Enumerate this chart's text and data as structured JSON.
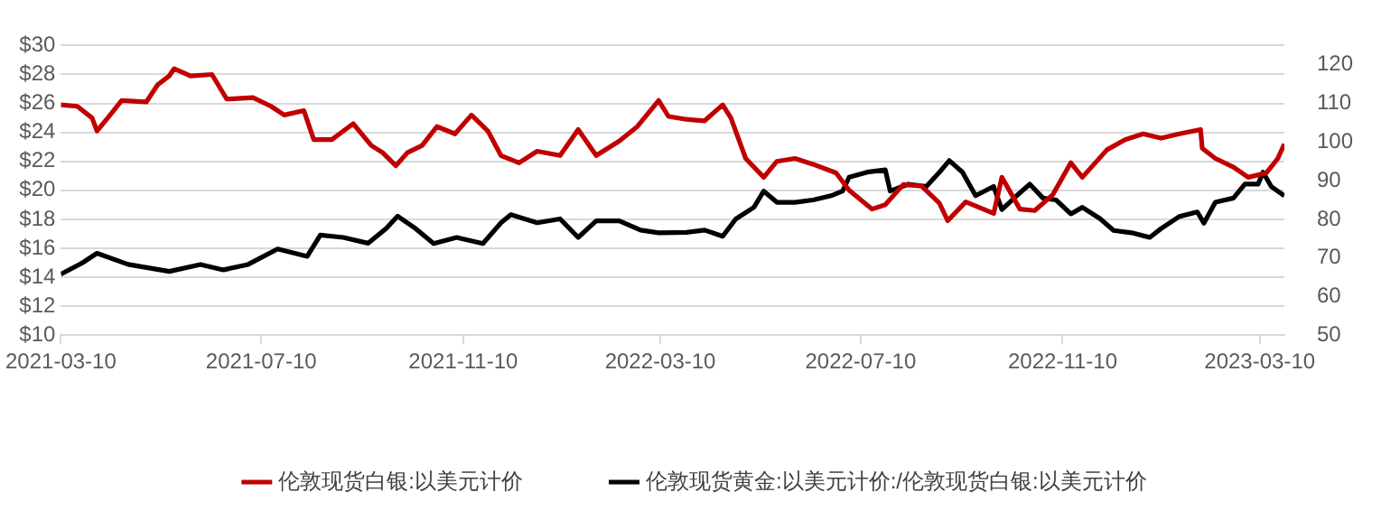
{
  "chart_data": {
    "type": "line",
    "xlim": [
      "2021-03-10",
      "2023-03-25"
    ],
    "xticks": [
      "2021-03-10",
      "2021-07-10",
      "2021-11-10",
      "2022-03-10",
      "2022-07-10",
      "2022-11-10",
      "2023-03-10"
    ],
    "ylim": [
      10,
      30
    ],
    "yticks": [
      {
        "value": 10,
        "label": "$10"
      },
      {
        "value": 12,
        "label": "$12"
      },
      {
        "value": 14,
        "label": "$14"
      },
      {
        "value": 16,
        "label": "$16"
      },
      {
        "value": 18,
        "label": "$18"
      },
      {
        "value": 20,
        "label": "$20"
      },
      {
        "value": 22,
        "label": "$22"
      },
      {
        "value": 24,
        "label": "$24"
      },
      {
        "value": 26,
        "label": "$26"
      },
      {
        "value": 28,
        "label": "$28"
      },
      {
        "value": 30,
        "label": "$30"
      }
    ],
    "y2lim": [
      50,
      125
    ],
    "y2ticks": [
      50,
      60,
      70,
      80,
      90,
      100,
      110,
      120
    ],
    "grid": "y",
    "legend": "bottom",
    "marker": "none",
    "line_style": "solid",
    "series": [
      {
        "name": "伦敦现货白银:以美元计价",
        "color": "#c00000",
        "x": [
          "2021-03-10",
          "2021-03-20",
          "2021-03-29",
          "2021-04-01",
          "2021-04-09",
          "2021-04-16",
          "2021-05-01",
          "2021-05-08",
          "2021-05-15",
          "2021-05-18",
          "2021-05-28",
          "2021-06-10",
          "2021-06-19",
          "2021-07-05",
          "2021-07-16",
          "2021-07-24",
          "2021-08-05",
          "2021-08-11",
          "2021-08-22",
          "2021-09-04",
          "2021-09-15",
          "2021-09-22",
          "2021-09-30",
          "2021-10-07",
          "2021-10-16",
          "2021-10-25",
          "2021-11-05",
          "2021-11-15",
          "2021-11-25",
          "2021-12-03",
          "2021-12-14",
          "2021-12-25",
          "2022-01-08",
          "2022-01-19",
          "2022-01-30",
          "2022-02-13",
          "2022-02-24",
          "2022-03-09",
          "2022-03-15",
          "2022-03-26",
          "2022-04-06",
          "2022-04-17",
          "2022-04-22",
          "2022-05-01",
          "2022-05-12",
          "2022-05-20",
          "2022-05-31",
          "2022-06-11",
          "2022-06-25",
          "2022-07-03",
          "2022-07-17",
          "2022-07-25",
          "2022-08-05",
          "2022-08-16",
          "2022-08-27",
          "2022-09-01",
          "2022-09-12",
          "2022-09-29",
          "2022-10-04",
          "2022-10-15",
          "2022-10-24",
          "2022-11-04",
          "2022-11-15",
          "2022-11-22",
          "2022-12-07",
          "2022-12-18",
          "2022-12-29",
          "2023-01-09",
          "2023-01-20",
          "2023-02-02",
          "2023-02-03",
          "2023-02-11",
          "2023-02-22",
          "2023-03-03",
          "2023-03-14",
          "2023-03-21",
          "2023-03-25"
        ],
        "values": [
          25.9,
          25.8,
          25.0,
          24.1,
          25.2,
          26.2,
          26.1,
          27.3,
          27.9,
          28.4,
          27.9,
          28.0,
          26.3,
          26.4,
          25.8,
          25.2,
          25.5,
          23.5,
          23.5,
          24.6,
          23.1,
          22.6,
          21.7,
          22.6,
          23.1,
          24.4,
          23.9,
          25.2,
          24.1,
          22.4,
          21.9,
          22.7,
          22.4,
          24.2,
          22.4,
          23.4,
          24.4,
          26.2,
          25.1,
          24.9,
          24.8,
          25.9,
          25.0,
          22.2,
          20.9,
          22.0,
          22.2,
          21.8,
          21.2,
          20.0,
          18.7,
          19.0,
          20.4,
          20.3,
          19.1,
          17.9,
          19.2,
          18.4,
          20.9,
          18.7,
          18.6,
          19.7,
          21.9,
          20.9,
          22.8,
          23.5,
          23.9,
          23.6,
          23.9,
          24.2,
          22.9,
          22.2,
          21.6,
          20.9,
          21.2,
          22.2,
          23.2
        ]
      },
      {
        "name": "伦敦现货黄金:以美元计价:/伦敦现货白银:以美元计价",
        "color": "#000000",
        "axis": "y2",
        "x": [
          "2021-03-10",
          "2021-03-23",
          "2021-04-01",
          "2021-04-20",
          "2021-05-15",
          "2021-06-03",
          "2021-06-17",
          "2021-07-02",
          "2021-07-20",
          "2021-08-07",
          "2021-08-15",
          "2021-08-29",
          "2021-09-13",
          "2021-09-24",
          "2021-10-01",
          "2021-10-12",
          "2021-10-23",
          "2021-11-06",
          "2021-11-22",
          "2021-12-03",
          "2021-12-09",
          "2021-12-25",
          "2022-01-08",
          "2022-01-19",
          "2022-01-30",
          "2022-02-13",
          "2022-02-26",
          "2022-03-09",
          "2022-03-26",
          "2022-04-06",
          "2022-04-17",
          "2022-04-25",
          "2022-05-06",
          "2022-05-12",
          "2022-05-20",
          "2022-05-31",
          "2022-06-11",
          "2022-06-22",
          "2022-06-29",
          "2022-07-03",
          "2022-07-14",
          "2022-07-25",
          "2022-07-28",
          "2022-08-08",
          "2022-08-19",
          "2022-08-27",
          "2022-09-02",
          "2022-09-10",
          "2022-09-18",
          "2022-09-29",
          "2022-10-04",
          "2022-10-13",
          "2022-10-21",
          "2022-10-29",
          "2022-11-06",
          "2022-11-15",
          "2022-11-22",
          "2022-12-03",
          "2022-12-11",
          "2022-12-22",
          "2023-01-02",
          "2023-01-09",
          "2023-01-20",
          "2023-01-31",
          "2023-02-04",
          "2023-02-11",
          "2023-02-22",
          "2023-03-01",
          "2023-03-09",
          "2023-03-12",
          "2023-03-17",
          "2023-03-25"
        ],
        "values": [
          65.8,
          68.7,
          71.2,
          68.3,
          66.5,
          68.3,
          66.9,
          68.3,
          72.3,
          70.4,
          75.9,
          75.3,
          73.8,
          77.6,
          80.8,
          77.6,
          73.7,
          75.3,
          73.7,
          79.1,
          81.2,
          79.1,
          80.1,
          75.3,
          79.6,
          79.6,
          77.2,
          76.5,
          76.6,
          77.2,
          75.6,
          80.1,
          83.1,
          87.3,
          84.4,
          84.4,
          85.0,
          86.1,
          87.3,
          90.9,
          92.2,
          92.8,
          87.3,
          89.1,
          88.5,
          92.2,
          95.2,
          92.2,
          86.1,
          88.5,
          82.5,
          86.1,
          89.1,
          85.5,
          85.0,
          81.4,
          83.1,
          80.1,
          77.1,
          76.5,
          75.3,
          77.6,
          80.7,
          81.9,
          79.0,
          84.4,
          85.5,
          89.1,
          89.1,
          92.2,
          88.5,
          86.1
        ]
      }
    ]
  }
}
